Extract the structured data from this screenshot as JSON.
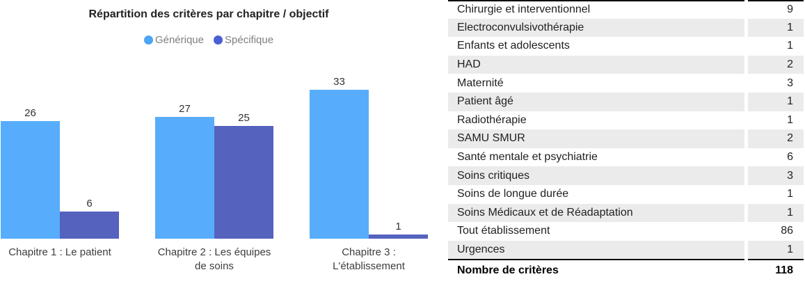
{
  "chart": {
    "title": "Répartition des critères par chapitre / objectif",
    "legend": [
      {
        "label": "Générique",
        "dot_color": "#4da6f5"
      },
      {
        "label": "Spécifique",
        "dot_color": "#4b5ed6"
      }
    ]
  },
  "chart_data": {
    "type": "bar",
    "title": "Répartition des critères par chapitre / objectif",
    "categories": [
      "Chapitre 1 : Le patient",
      "Chapitre 2 : Les équipes de soins",
      "Chapitre 3 : L'établissement"
    ],
    "category_display": [
      "Chapitre 1 : Le patient",
      "Chapitre 2 : Les équipes\nde soins",
      "Chapitre 3 :\nL'établissement"
    ],
    "series": [
      {
        "name": "Générique",
        "color": "#57adfb",
        "values": [
          26,
          27,
          33
        ]
      },
      {
        "name": "Spécifique",
        "color": "#5562be",
        "values": [
          6,
          25,
          1
        ]
      }
    ],
    "ylim": [
      0,
      35
    ],
    "grid": false,
    "legend_position": "top",
    "value_labels": true,
    "xlabel": "",
    "ylabel": ""
  },
  "table": {
    "shade_color": "#ebebeb",
    "rows": [
      {
        "label": "Chirurgie et interventionnel",
        "value": "9"
      },
      {
        "label": "Electroconvulsivothérapie",
        "value": "1"
      },
      {
        "label": "Enfants et adolescents",
        "value": "1"
      },
      {
        "label": "HAD",
        "value": "2"
      },
      {
        "label": "Maternité",
        "value": "3"
      },
      {
        "label": "Patient âgé",
        "value": "1"
      },
      {
        "label": "Radiothérapie",
        "value": "1"
      },
      {
        "label": "SAMU SMUR",
        "value": "2"
      },
      {
        "label": "Santé mentale et psychiatrie",
        "value": "6"
      },
      {
        "label": "Soins critiques",
        "value": "3"
      },
      {
        "label": "Soins de longue durée",
        "value": "1"
      },
      {
        "label": "Soins Médicaux et de Réadaptation",
        "value": "1"
      },
      {
        "label": "Tout établissement",
        "value": "86"
      },
      {
        "label": "Urgences",
        "value": "1"
      }
    ],
    "total_row": {
      "label": "Nombre de critères",
      "value": "118"
    }
  }
}
